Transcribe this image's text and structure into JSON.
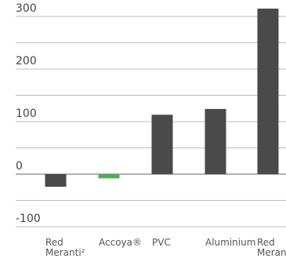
{
  "chart_data": {
    "type": "bar",
    "categories": [
      [
        "Red",
        "Meranti²"
      ],
      [
        "Accoya®"
      ],
      [
        "PVC"
      ],
      [
        "Aluminium"
      ],
      [
        "Red",
        "Meranti"
      ]
    ],
    "values": [
      -24,
      -8,
      113,
      124,
      315
    ],
    "ylim": [
      -120,
      320
    ],
    "y_ticks": [
      300,
      200,
      100,
      0,
      -100
    ],
    "grid": true,
    "colors": {
      "bar": "#4a4a4a",
      "highlight_bar": "#4caf50",
      "highlight_label": "#4caf50",
      "label": "#555555",
      "tick": "#444444",
      "grid": "#bdbdbd",
      "zero_line": "#666666"
    },
    "highlight_index": 1
  }
}
